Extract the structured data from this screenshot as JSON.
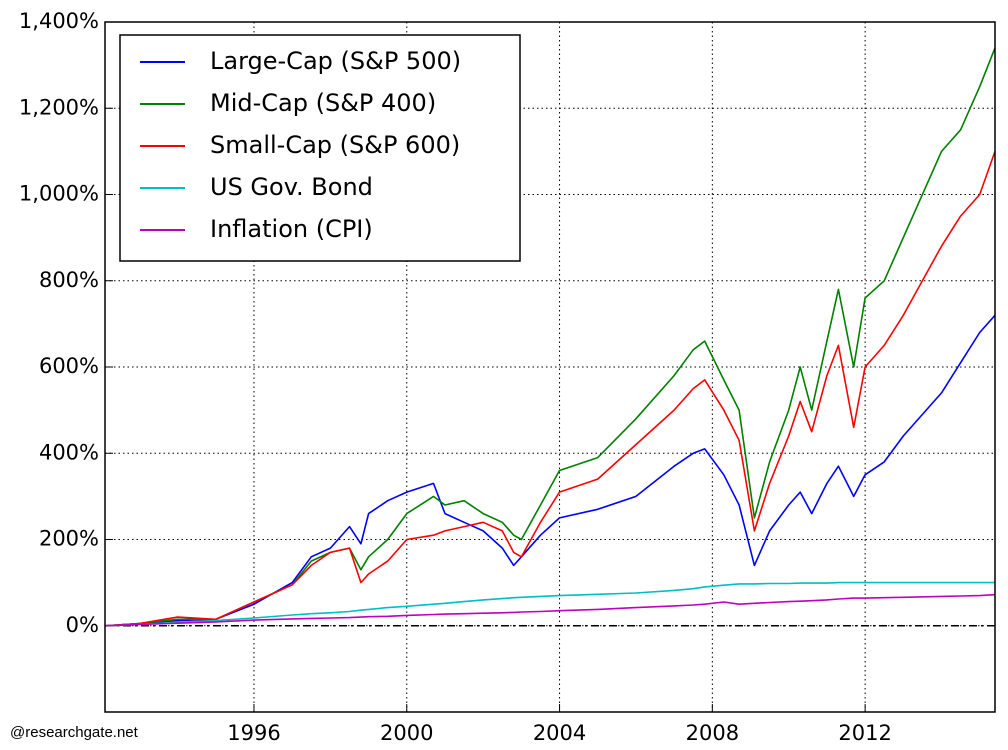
{
  "chart_data": {
    "type": "line",
    "x": [
      1992.1,
      1993,
      1994,
      1995,
      1996,
      1997,
      1997.5,
      1998,
      1998.5,
      1998.8,
      1999,
      1999.5,
      2000,
      2000.7,
      2001,
      2001.5,
      2002,
      2002.5,
      2002.8,
      2003,
      2003.5,
      2004,
      2005,
      2006,
      2007,
      2007.5,
      2007.8,
      2008.3,
      2008.7,
      2009.1,
      2009.5,
      2010,
      2010.3,
      2010.6,
      2011,
      2011.3,
      2011.7,
      2012,
      2012.5,
      2013,
      2014,
      2014.5,
      2015,
      2015.4
    ],
    "series": [
      {
        "name": "Large-Cap (S&P 500)",
        "color": "#0000ff",
        "values": [
          0,
          5,
          12,
          15,
          50,
          100,
          160,
          180,
          230,
          190,
          260,
          290,
          310,
          330,
          260,
          240,
          220,
          180,
          140,
          160,
          210,
          250,
          270,
          300,
          370,
          400,
          410,
          350,
          280,
          140,
          220,
          280,
          310,
          260,
          330,
          370,
          300,
          350,
          380,
          440,
          540,
          610,
          680,
          720
        ]
      },
      {
        "name": "Mid-Cap (S&P 400)",
        "color": "#008000",
        "values": [
          0,
          5,
          15,
          15,
          55,
          95,
          150,
          170,
          180,
          130,
          160,
          200,
          260,
          300,
          280,
          290,
          260,
          240,
          210,
          200,
          280,
          360,
          390,
          480,
          580,
          640,
          660,
          570,
          500,
          250,
          380,
          500,
          600,
          500,
          660,
          780,
          600,
          760,
          800,
          900,
          1100,
          1150,
          1250,
          1340
        ]
      },
      {
        "name": "Small-Cap (S&P 600)",
        "color": "#ff0000",
        "values": [
          0,
          5,
          20,
          15,
          55,
          95,
          140,
          170,
          180,
          100,
          120,
          150,
          200,
          210,
          220,
          230,
          240,
          220,
          170,
          160,
          240,
          310,
          340,
          420,
          500,
          550,
          570,
          500,
          430,
          220,
          330,
          440,
          520,
          450,
          580,
          650,
          460,
          600,
          650,
          720,
          880,
          950,
          1000,
          1100
        ]
      },
      {
        "name": "US Gov. Bond",
        "color": "#00bfbf",
        "values": [
          0,
          3,
          8,
          12,
          18,
          25,
          28,
          30,
          33,
          36,
          38,
          42,
          45,
          50,
          52,
          56,
          60,
          63,
          65,
          66,
          68,
          70,
          73,
          76,
          82,
          86,
          90,
          94,
          97,
          97,
          98,
          98,
          99,
          99,
          99,
          100,
          100,
          100,
          100,
          100,
          100,
          100,
          100,
          100
        ]
      },
      {
        "name": "Inflation (CPI)",
        "color": "#bf00bf",
        "values": [
          0,
          3,
          6,
          9,
          13,
          16,
          17,
          18,
          19,
          20,
          21,
          22,
          24,
          26,
          27,
          28,
          29,
          30,
          31,
          32,
          33,
          35,
          38,
          42,
          46,
          48,
          50,
          55,
          50,
          52,
          54,
          56,
          57,
          58,
          60,
          62,
          64,
          64,
          65,
          66,
          68,
          69,
          70,
          72
        ]
      }
    ],
    "xlim": [
      1992.1,
      2015.4
    ],
    "xticks": [
      1996,
      2000,
      2004,
      2008,
      2012
    ],
    "ylim": [
      -200,
      1400
    ],
    "yticks": [
      {
        "value": 0,
        "label": "0%"
      },
      {
        "value": 200,
        "label": "200%"
      },
      {
        "value": 400,
        "label": "400%"
      },
      {
        "value": 600,
        "label": "600%"
      },
      {
        "value": 800,
        "label": "800%"
      },
      {
        "value": 1000,
        "label": "1,000%"
      },
      {
        "value": 1200,
        "label": "1,200%"
      },
      {
        "value": 1400,
        "label": "1,400%"
      }
    ],
    "grid": true,
    "legend": "upper left",
    "watermark": "@researchgate.net"
  }
}
